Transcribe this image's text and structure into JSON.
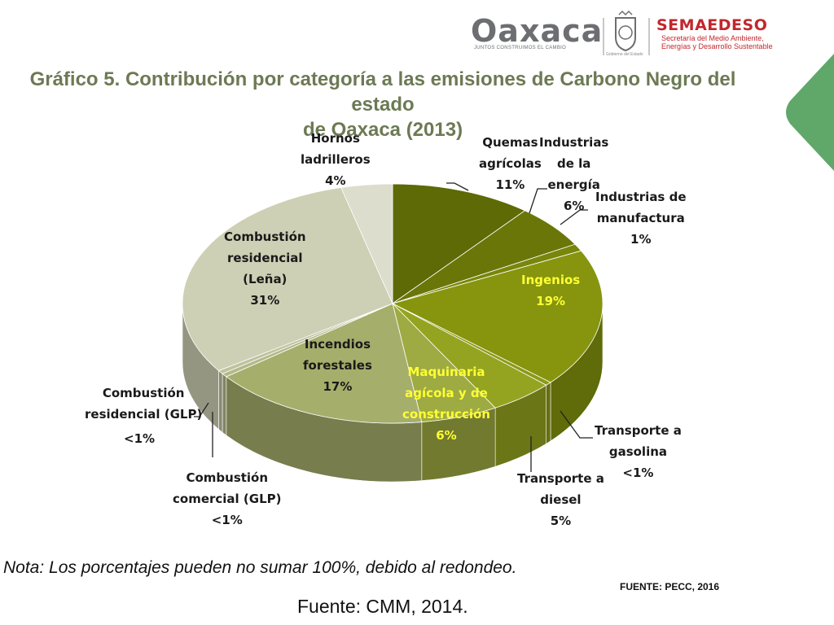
{
  "header": {
    "oaxaca_logo": "Oaxaca",
    "oaxaca_tagline": "JUNTOS CONSTRUIMOS EL CAMBIO",
    "gobierno_caption": "Gobierno del Estado",
    "semaedeso_name": "SEMAEDESO",
    "semaedeso_sub1": "Secretaría del Medio Ambiente,",
    "semaedeso_sub2": "Energías y Desarrollo Sustentable"
  },
  "title": {
    "line1": "Gráfico 5. Contribución por categoría a las emisiones de Carbono Negro del estado",
    "line2": "de Oaxaca (2013)"
  },
  "chart_data": {
    "type": "pie",
    "title": "Gráfico 5. Contribución por categoría a las emisiones de Carbono Negro del estado de Oaxaca (2013)",
    "slices": [
      {
        "label": "Quemas agrícolas",
        "value": 11,
        "display": "11%",
        "color": "#5d6a06"
      },
      {
        "label": "Industrias de la energía",
        "value": 6,
        "display": "6%",
        "color": "#6a7608"
      },
      {
        "label": "Industrias de manufactura",
        "value": 1,
        "display": "1%",
        "color": "#78860b"
      },
      {
        "label": "Ingenios",
        "value": 19,
        "display": "19%",
        "color": "#86950d"
      },
      {
        "label": "Transporte a gasolina",
        "value": 0.5,
        "display": "<1%",
        "color": "#8c9a18"
      },
      {
        "label": "Transporte a diesel",
        "value": 5,
        "display": "5%",
        "color": "#94a420"
      },
      {
        "label": "Maquinaria agícola y de construcción",
        "value": 6,
        "display": "6%",
        "color": "#9eaa42"
      },
      {
        "label": "Incendios forestales",
        "value": 17,
        "display": "17%",
        "color": "#a6ae6b"
      },
      {
        "label": "Combustión comercial (GLP)",
        "value": 0.5,
        "display": "<1%",
        "color": "#b4b98c"
      },
      {
        "label": "Combustión residencial (GLP)",
        "value": 0.5,
        "display": "<1%",
        "color": "#bfc39d"
      },
      {
        "label": "Combustión residencial (Leña)",
        "value": 31,
        "display": "31%",
        "color": "#cdd0b4"
      },
      {
        "label": "Hornos ladrilleros",
        "value": 4,
        "display": "4%",
        "color": "#dcddcc"
      }
    ]
  },
  "labels": {
    "quemas": [
      "Quemas",
      "agrícolas",
      "11%"
    ],
    "energia": [
      "Industrias",
      "de la",
      "energía",
      "6%"
    ],
    "manufactura": [
      "Industrias de",
      "manufactura",
      "1%"
    ],
    "ingenios": [
      "Ingenios",
      "19%"
    ],
    "gasolina": [
      "Transporte a",
      "gasolina",
      "<1%"
    ],
    "diesel": [
      "Transporte a",
      "diesel",
      "5%"
    ],
    "maquinaria": [
      "Maquinaria",
      "agícola y de",
      "construcción",
      "6%"
    ],
    "incendios": [
      "Incendios",
      "forestales",
      "17%"
    ],
    "comercial": [
      "Combustión",
      "comercial (GLP)",
      "<1%"
    ],
    "residencial_glp": [
      "Combustión",
      "residencial (GLP)",
      "<1%"
    ],
    "lena": [
      "Combustión",
      "residencial",
      "(Leña)",
      "31%"
    ],
    "hornos": [
      "Hornos",
      "ladrilleros",
      "4%"
    ]
  },
  "note": "Nota: Los porcentajes pueden no sumar 100%, debido al redondeo.",
  "source_right": "FUENTE: PECC, 2016",
  "source_bottom": "Fuente: CMM, 2014."
}
